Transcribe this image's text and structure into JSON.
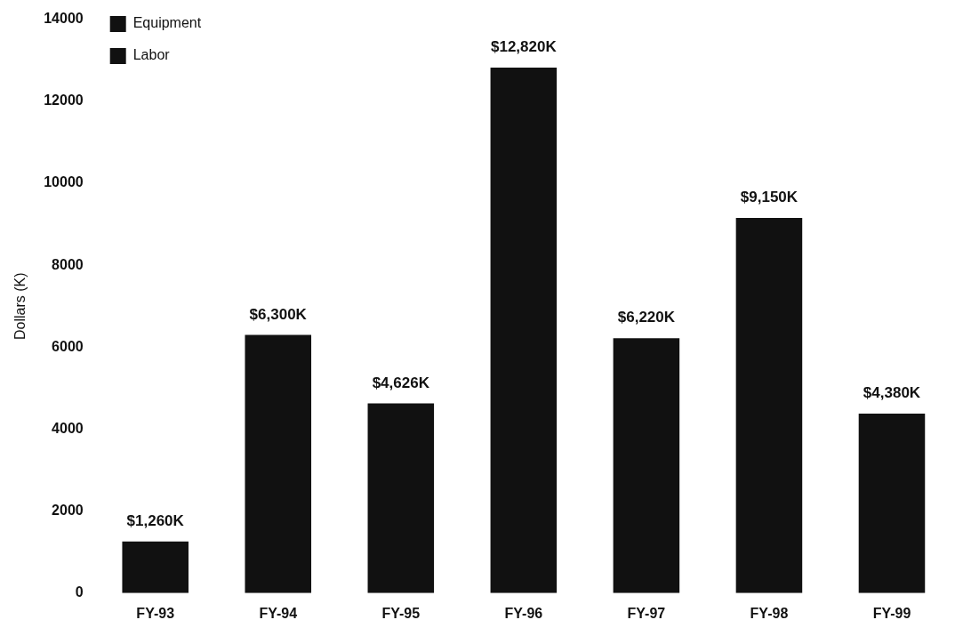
{
  "chart_data": {
    "type": "bar",
    "ylabel": "Dollars (K)",
    "categories": [
      "FY-93",
      "FY-94",
      "FY-95",
      "FY-96",
      "FY-97",
      "FY-98",
      "FY-99"
    ],
    "stacked": true,
    "series": [
      {
        "name": "Equipment",
        "color": "#111111",
        "values": [
          1260,
          6300,
          4626,
          12820,
          6220,
          9150,
          4380
        ],
        "value_labels": [
          "$1,260K",
          "$6,300K",
          "$4,626K",
          "$12,820K",
          "$6,220K",
          "$9,150K",
          "$4,380K"
        ]
      },
      {
        "name": "Labor",
        "color": "#111111",
        "values": [
          null,
          null,
          null,
          null,
          null,
          null,
          null
        ]
      }
    ],
    "ylim": [
      0,
      14000
    ],
    "yticks": [
      0,
      2000,
      4000,
      6000,
      8000,
      10000,
      12000,
      14000
    ],
    "grid": false,
    "legend": "top left"
  }
}
